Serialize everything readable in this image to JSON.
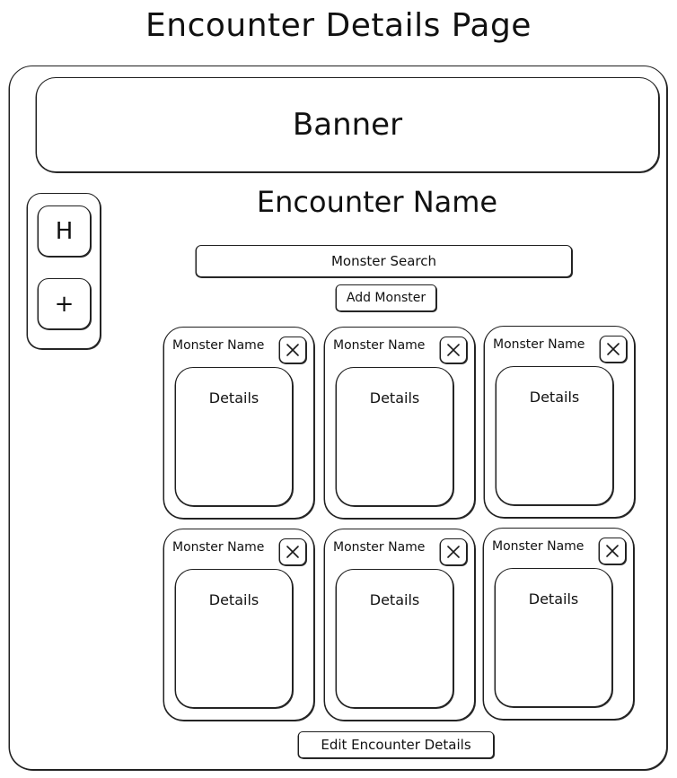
{
  "page_title": "Encounter Details Page",
  "banner": {
    "label": "Banner"
  },
  "sidebar": {
    "items": [
      {
        "label": "H",
        "icon": "home-icon"
      },
      {
        "label": "+",
        "icon": "plus-icon"
      }
    ]
  },
  "encounter": {
    "name": "Encounter Name"
  },
  "search": {
    "placeholder": "Monster Search"
  },
  "add_monster": {
    "label": "Add Monster"
  },
  "monsters": [
    {
      "name": "Monster Name",
      "details": "Details"
    },
    {
      "name": "Monster Name",
      "details": "Details"
    },
    {
      "name": "Monster Name",
      "details": "Details"
    },
    {
      "name": "Monster Name",
      "details": "Details"
    },
    {
      "name": "Monster Name",
      "details": "Details"
    },
    {
      "name": "Monster Name",
      "details": "Details"
    }
  ],
  "edit_encounter": {
    "label": "Edit Encounter Details"
  }
}
